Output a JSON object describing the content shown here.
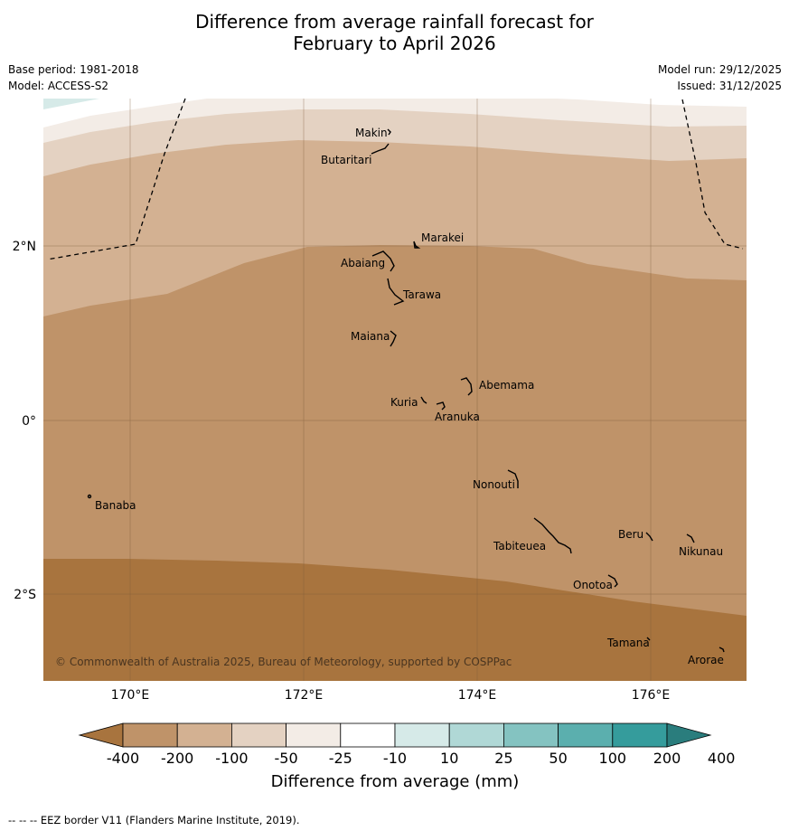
{
  "header": {
    "title_line1": "Difference from average rainfall forecast for",
    "title_line2": "February to April 2026",
    "base_period": "Base period: 1981-2018",
    "model": "Model: ACCESS-S2",
    "model_run": "Model run: 29/12/2025",
    "issued": "Issued: 31/12/2025"
  },
  "map": {
    "lat_labels": [
      "2°N",
      "0°",
      "2°S"
    ],
    "lon_labels": [
      "170°E",
      "172°E",
      "174°E",
      "176°E"
    ],
    "copyright": "© Commonwealth of Australia 2025, Bureau of Meteorology, supported by COSPPac",
    "places": [
      "Makin",
      "Butaritari",
      "Marakei",
      "Abaiang",
      "Tarawa",
      "Maiana",
      "Abemama",
      "Kuria",
      "Aranuka",
      "Banaba",
      "Nonouti",
      "Tabiteuea",
      "Beru",
      "Nikunau",
      "Onotoa",
      "Tamana",
      "Arorae"
    ]
  },
  "legend": {
    "ticks": [
      "-400",
      "-200",
      "-100",
      "-50",
      "-25",
      "-10",
      "10",
      "25",
      "50",
      "100",
      "200",
      "400"
    ],
    "colors": [
      "#a8743e",
      "#bf9369",
      "#d3b192",
      "#e4d2c2",
      "#f3ece6",
      "#ffffff",
      "#d6eae8",
      "#b0d8d6",
      "#84c3c1",
      "#5bafae",
      "#359c9c",
      "#2a7d7d"
    ],
    "label": "Difference from average (mm)"
  },
  "footer": {
    "note": "--  --  -- EEZ border V11 (Flanders Marine Institute, 2019)."
  }
}
